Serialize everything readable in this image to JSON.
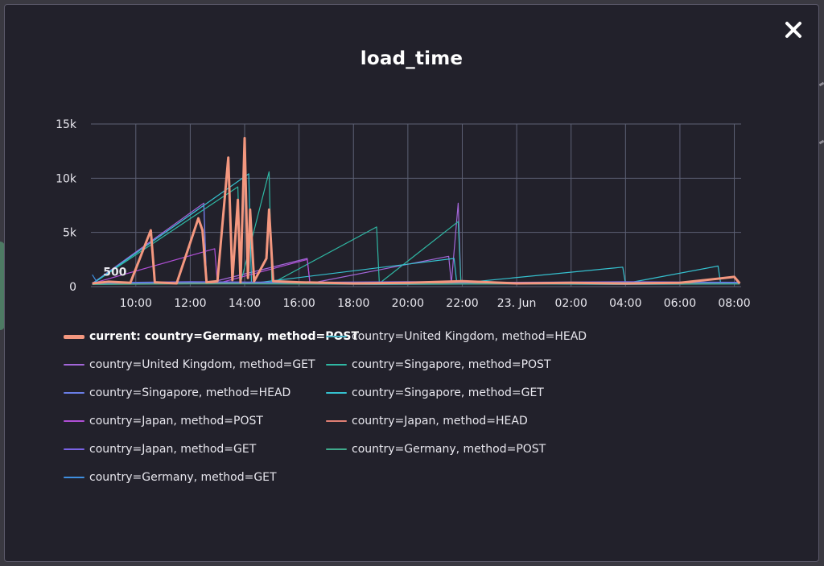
{
  "modal": {
    "title": "load_time",
    "close_icon": "close-icon"
  },
  "chart_data": {
    "type": "line",
    "title": "load_time",
    "xlabel": "",
    "ylabel": "",
    "x_ticks": [
      "10:00",
      "12:00",
      "14:00",
      "16:00",
      "18:00",
      "20:00",
      "22:00",
      "23. Jun",
      "02:00",
      "04:00",
      "06:00",
      "08:00"
    ],
    "y_ticks": [
      "0",
      "5k",
      "10k",
      "15k"
    ],
    "x_range_hours": [
      8.35,
      32.25
    ],
    "ylim": [
      0,
      15000
    ],
    "grid": true,
    "legend_position": "bottom-left",
    "annotation": "500",
    "series": [
      {
        "name": "current: country=Germany, method=POST",
        "color": "#f3977f",
        "current": true,
        "points": [
          [
            8.4,
            300
          ],
          [
            9.0,
            450
          ],
          [
            9.8,
            350
          ],
          [
            10.55,
            5200
          ],
          [
            10.7,
            400
          ],
          [
            11.5,
            300
          ],
          [
            12.3,
            6300
          ],
          [
            12.45,
            5200
          ],
          [
            12.6,
            400
          ],
          [
            13.0,
            500
          ],
          [
            13.4,
            11900
          ],
          [
            13.55,
            600
          ],
          [
            13.75,
            8000
          ],
          [
            13.85,
            400
          ],
          [
            14.0,
            13700
          ],
          [
            14.12,
            800
          ],
          [
            14.2,
            7100
          ],
          [
            14.35,
            500
          ],
          [
            14.8,
            2600
          ],
          [
            14.9,
            7100
          ],
          [
            15.05,
            500
          ],
          [
            16.0,
            400
          ],
          [
            18.0,
            300
          ],
          [
            20.0,
            350
          ],
          [
            22.0,
            500
          ],
          [
            24.0,
            300
          ],
          [
            26.0,
            350
          ],
          [
            28.0,
            300
          ],
          [
            30.0,
            350
          ],
          [
            32.0,
            900
          ],
          [
            32.2,
            300
          ]
        ]
      },
      {
        "name": "country=United Kingdom, method=HEAD",
        "color": "#4cb7c8",
        "points": [
          [
            8.4,
            200
          ],
          [
            12.5,
            300
          ],
          [
            18.8,
            200
          ],
          [
            24.0,
            250
          ],
          [
            28.0,
            200
          ],
          [
            32.2,
            250
          ]
        ]
      },
      {
        "name": "country=United Kingdom, method=GET",
        "color": "#a366d9",
        "points": [
          [
            8.4,
            300
          ],
          [
            12.5,
            7700
          ],
          [
            12.6,
            300
          ],
          [
            16.3,
            2600
          ],
          [
            16.4,
            300
          ],
          [
            21.5,
            2800
          ],
          [
            21.6,
            300
          ],
          [
            21.85,
            7700
          ],
          [
            21.95,
            300
          ],
          [
            32.2,
            300
          ]
        ]
      },
      {
        "name": "country=Singapore, method=POST",
        "color": "#2fb7a3",
        "points": [
          [
            8.4,
            250
          ],
          [
            13.75,
            9200
          ],
          [
            13.85,
            300
          ],
          [
            14.9,
            10600
          ],
          [
            15.0,
            300
          ],
          [
            18.85,
            5500
          ],
          [
            18.95,
            300
          ],
          [
            21.85,
            6000
          ],
          [
            21.95,
            300
          ],
          [
            32.2,
            300
          ]
        ]
      },
      {
        "name": "country=Singapore, method=HEAD",
        "color": "#6a7ee6",
        "points": [
          [
            8.4,
            300
          ],
          [
            12.5,
            7500
          ],
          [
            12.6,
            300
          ],
          [
            16.0,
            400
          ],
          [
            20.0,
            350
          ],
          [
            24.0,
            400
          ],
          [
            28.0,
            350
          ],
          [
            32.2,
            400
          ]
        ]
      },
      {
        "name": "country=Singapore, method=GET",
        "color": "#35c1cf",
        "points": [
          [
            8.4,
            250
          ],
          [
            14.15,
            10400
          ],
          [
            14.25,
            300
          ],
          [
            21.7,
            2600
          ],
          [
            21.8,
            300
          ],
          [
            27.9,
            1800
          ],
          [
            28.0,
            300
          ],
          [
            31.4,
            1900
          ],
          [
            31.5,
            300
          ],
          [
            32.2,
            300
          ]
        ]
      },
      {
        "name": "country=Japan, method=POST",
        "color": "#b04fd6",
        "points": [
          [
            8.4,
            300
          ],
          [
            12.9,
            3500
          ],
          [
            13.0,
            300
          ],
          [
            16.3,
            2500
          ],
          [
            16.4,
            300
          ],
          [
            32.2,
            300
          ]
        ]
      },
      {
        "name": "country=Japan, method=HEAD",
        "color": "#e07f74",
        "points": [
          [
            8.4,
            250
          ],
          [
            12.0,
            350
          ],
          [
            16.0,
            300
          ],
          [
            20.0,
            350
          ],
          [
            24.0,
            300
          ],
          [
            28.0,
            350
          ],
          [
            32.2,
            300
          ]
        ]
      },
      {
        "name": "country=Japan, method=GET",
        "color": "#7a63e6",
        "points": [
          [
            8.4,
            350
          ],
          [
            12.0,
            450
          ],
          [
            16.0,
            400
          ],
          [
            20.0,
            450
          ],
          [
            24.0,
            400
          ],
          [
            28.0,
            450
          ],
          [
            32.2,
            400
          ]
        ]
      },
      {
        "name": "country=Germany, method=POST",
        "color": "#3fa98b",
        "points": [
          [
            8.4,
            200
          ],
          [
            12.0,
            250
          ],
          [
            16.0,
            250
          ],
          [
            20.0,
            250
          ],
          [
            24.0,
            250
          ],
          [
            28.0,
            250
          ],
          [
            32.2,
            250
          ]
        ]
      },
      {
        "name": "country=Germany, method=GET",
        "color": "#3f8fe0",
        "points": [
          [
            8.4,
            1100
          ],
          [
            8.6,
            300
          ],
          [
            12.0,
            400
          ],
          [
            16.0,
            350
          ],
          [
            20.0,
            400
          ],
          [
            24.0,
            350
          ],
          [
            28.0,
            400
          ],
          [
            32.2,
            350
          ]
        ]
      }
    ]
  }
}
